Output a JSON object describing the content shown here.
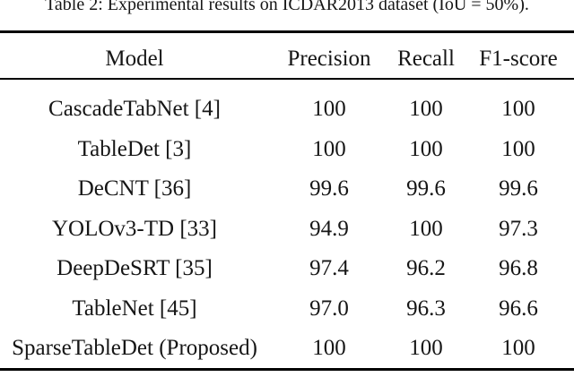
{
  "caption": "Table 2: Experimental results on ICDAR2013 dataset (IoU = 50%).",
  "table": {
    "columns": [
      "Model",
      "Precision",
      "Recall",
      "F1-score"
    ],
    "rows": [
      {
        "model": "CascadeTabNet [4]",
        "precision": "100",
        "recall": "100",
        "f1": "100"
      },
      {
        "model": "TableDet [3]",
        "precision": "100",
        "recall": "100",
        "f1": "100"
      },
      {
        "model": "DeCNT [36]",
        "precision": "99.6",
        "recall": "99.6",
        "f1": "99.6"
      },
      {
        "model": "YOLOv3-TD [33]",
        "precision": "94.9",
        "recall": "100",
        "f1": "97.3"
      },
      {
        "model": "DeepDeSRT [35]",
        "precision": "97.4",
        "recall": "96.2",
        "f1": "96.8"
      },
      {
        "model": "TableNet [45]",
        "precision": "97.0",
        "recall": "96.3",
        "f1": "96.6"
      },
      {
        "model": "SparseTableDet (Proposed)",
        "precision": "100",
        "recall": "100",
        "f1": "100"
      }
    ]
  },
  "colors": {
    "text": "#161616",
    "rule": "#000000",
    "background": "#ffffff"
  }
}
